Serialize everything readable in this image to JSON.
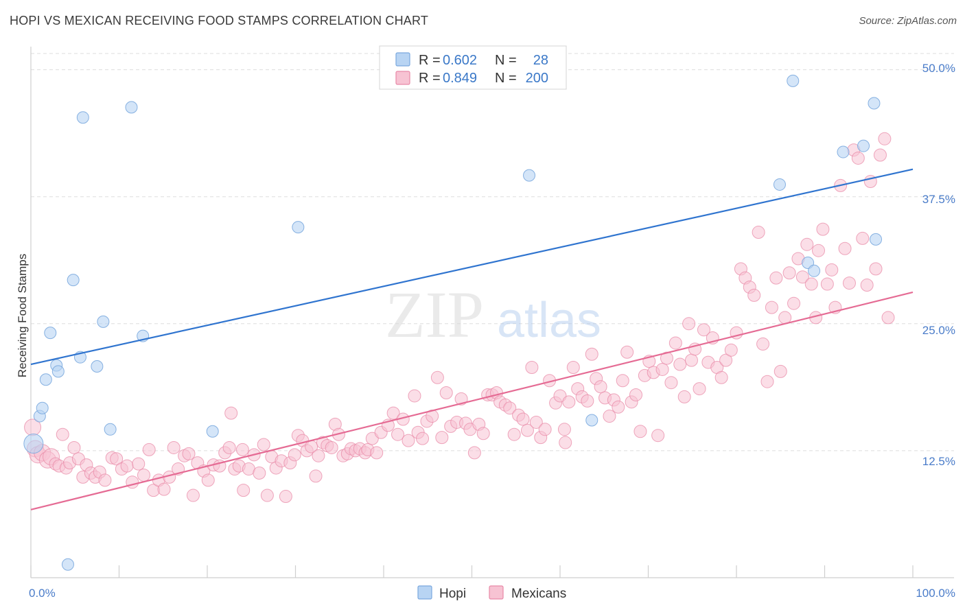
{
  "title": "HOPI VS MEXICAN RECEIVING FOOD STAMPS CORRELATION CHART",
  "source": "Source: ZipAtlas.com",
  "watermark": {
    "zip": "ZIP",
    "atlas": "atlas"
  },
  "legend": {
    "rows": [
      {
        "r_label": "R = ",
        "r_value": "0.602",
        "n_label": "N = ",
        "n_value": "28"
      },
      {
        "r_label": "R = ",
        "r_value": "0.849",
        "n_label": "N = ",
        "n_value": "200"
      }
    ]
  },
  "bottom_legend": [
    "Hopi",
    "Mexicans"
  ],
  "colors": {
    "hopi_fill": "#b8d4f3",
    "hopi_stroke": "#7aa8de",
    "hopi_line": "#2f74cf",
    "mex_fill": "#f7c3d3",
    "mex_stroke": "#e889a7",
    "mex_line": "#e56b94",
    "tick_text": "#4a7cc9",
    "grid": "#dddddd"
  },
  "chart_data": {
    "type": "scatter",
    "title": "HOPI VS MEXICAN RECEIVING FOOD STAMPS CORRELATION CHART",
    "xlabel": "",
    "ylabel": "Receiving Food Stamps",
    "xlim": [
      0,
      100
    ],
    "ylim": [
      0,
      52
    ],
    "x_tick_labels": [
      "0.0%",
      "100.0%"
    ],
    "y_ticks": [
      12.5,
      25.0,
      37.5,
      50.0
    ],
    "y_tick_labels": [
      "12.5%",
      "25.0%",
      "37.5%",
      "50.0%"
    ],
    "grid": true,
    "legend_position": "top-center",
    "series": [
      {
        "name": "Hopi",
        "r": 0.602,
        "n": 28,
        "trend": [
          [
            0,
            21.0
          ],
          [
            100,
            40.2
          ]
        ],
        "points": [
          [
            0.3,
            13.2
          ],
          [
            1.0,
            15.9
          ],
          [
            1.3,
            16.7
          ],
          [
            1.7,
            19.5
          ],
          [
            2.2,
            24.1
          ],
          [
            2.9,
            20.9
          ],
          [
            3.1,
            20.3
          ],
          [
            5.6,
            21.7
          ],
          [
            5.9,
            45.3
          ],
          [
            4.8,
            29.3
          ],
          [
            7.5,
            20.8
          ],
          [
            8.2,
            25.2
          ],
          [
            9.0,
            14.6
          ],
          [
            11.4,
            46.3
          ],
          [
            12.7,
            23.8
          ],
          [
            20.6,
            14.4
          ],
          [
            30.3,
            34.5
          ],
          [
            4.2,
            1.3
          ],
          [
            56.5,
            39.6
          ],
          [
            63.6,
            15.5
          ],
          [
            84.9,
            38.7
          ],
          [
            86.4,
            48.9
          ],
          [
            88.1,
            31.0
          ],
          [
            88.8,
            30.2
          ],
          [
            92.1,
            41.9
          ],
          [
            94.4,
            42.5
          ],
          [
            95.6,
            46.7
          ],
          [
            95.8,
            33.3
          ]
        ]
      },
      {
        "name": "Mexicans",
        "r": 0.849,
        "n": 200,
        "trend": [
          [
            0,
            6.7
          ],
          [
            100,
            28.1
          ]
        ],
        "points": [
          [
            0.2,
            14.8
          ],
          [
            0.5,
            12.7
          ],
          [
            0.8,
            12.1
          ],
          [
            1.3,
            12.3
          ],
          [
            1.9,
            11.6
          ],
          [
            2.3,
            11.9
          ],
          [
            2.8,
            11.2
          ],
          [
            3.2,
            11.0
          ],
          [
            3.6,
            14.1
          ],
          [
            4.0,
            10.8
          ],
          [
            4.4,
            11.3
          ],
          [
            4.9,
            12.8
          ],
          [
            5.4,
            11.7
          ],
          [
            5.9,
            9.9
          ],
          [
            6.3,
            11.1
          ],
          [
            6.8,
            10.3
          ],
          [
            7.3,
            9.9
          ],
          [
            7.8,
            10.4
          ],
          [
            8.4,
            9.6
          ],
          [
            9.2,
            11.8
          ],
          [
            9.7,
            11.7
          ],
          [
            10.3,
            10.7
          ],
          [
            10.9,
            11.0
          ],
          [
            11.5,
            9.4
          ],
          [
            12.2,
            11.2
          ],
          [
            12.8,
            10.1
          ],
          [
            13.4,
            12.6
          ],
          [
            13.9,
            8.6
          ],
          [
            14.5,
            9.6
          ],
          [
            15.1,
            8.7
          ],
          [
            15.7,
            9.9
          ],
          [
            16.2,
            12.8
          ],
          [
            16.7,
            10.7
          ],
          [
            17.4,
            12.0
          ],
          [
            17.9,
            12.2
          ],
          [
            18.4,
            8.1
          ],
          [
            18.9,
            11.3
          ],
          [
            19.6,
            10.5
          ],
          [
            20.1,
            9.6
          ],
          [
            20.7,
            11.1
          ],
          [
            21.4,
            11.0
          ],
          [
            22.0,
            12.3
          ],
          [
            22.5,
            12.8
          ],
          [
            22.7,
            16.2
          ],
          [
            23.1,
            10.7
          ],
          [
            23.6,
            11.0
          ],
          [
            24.1,
            8.6
          ],
          [
            24.7,
            10.7
          ],
          [
            25.3,
            12.1
          ],
          [
            25.9,
            10.3
          ],
          [
            26.4,
            13.1
          ],
          [
            26.8,
            8.1
          ],
          [
            27.3,
            11.9
          ],
          [
            27.8,
            10.8
          ],
          [
            28.4,
            11.5
          ],
          [
            28.9,
            8.0
          ],
          [
            29.4,
            11.3
          ],
          [
            29.9,
            12.1
          ],
          [
            30.3,
            14.0
          ],
          [
            30.8,
            13.5
          ],
          [
            31.3,
            12.5
          ],
          [
            31.8,
            12.9
          ],
          [
            32.3,
            10.0
          ],
          [
            32.6,
            12.0
          ],
          [
            33.1,
            13.3
          ],
          [
            33.6,
            13.0
          ],
          [
            34.1,
            12.8
          ],
          [
            34.5,
            15.1
          ],
          [
            34.9,
            14.1
          ],
          [
            35.4,
            12.0
          ],
          [
            35.9,
            12.2
          ],
          [
            36.3,
            12.7
          ],
          [
            36.8,
            12.5
          ],
          [
            37.3,
            12.7
          ],
          [
            37.9,
            12.3
          ],
          [
            38.2,
            12.6
          ],
          [
            38.7,
            13.7
          ],
          [
            39.2,
            12.3
          ],
          [
            39.7,
            14.3
          ],
          [
            40.5,
            15.0
          ],
          [
            41.1,
            16.2
          ],
          [
            41.6,
            14.1
          ],
          [
            42.2,
            15.6
          ],
          [
            42.8,
            13.5
          ],
          [
            43.5,
            17.9
          ],
          [
            43.9,
            14.3
          ],
          [
            44.4,
            13.7
          ],
          [
            44.9,
            15.4
          ],
          [
            45.5,
            15.9
          ],
          [
            46.1,
            19.7
          ],
          [
            46.6,
            13.8
          ],
          [
            47.1,
            18.2
          ],
          [
            47.6,
            14.9
          ],
          [
            48.3,
            15.3
          ],
          [
            48.8,
            17.6
          ],
          [
            49.3,
            15.2
          ],
          [
            50.3,
            12.3
          ],
          [
            49.8,
            14.6
          ],
          [
            50.8,
            15.1
          ],
          [
            51.3,
            14.2
          ],
          [
            51.8,
            18.0
          ],
          [
            52.3,
            18.0
          ],
          [
            52.8,
            18.2
          ],
          [
            53.2,
            17.3
          ],
          [
            53.8,
            17.0
          ],
          [
            54.3,
            16.7
          ],
          [
            54.8,
            14.1
          ],
          [
            55.3,
            16.0
          ],
          [
            55.8,
            15.6
          ],
          [
            56.3,
            14.5
          ],
          [
            56.8,
            20.7
          ],
          [
            57.3,
            15.3
          ],
          [
            57.8,
            13.8
          ],
          [
            58.3,
            14.6
          ],
          [
            58.8,
            19.4
          ],
          [
            59.5,
            17.2
          ],
          [
            60.0,
            17.9
          ],
          [
            60.5,
            14.6
          ],
          [
            61.0,
            17.3
          ],
          [
            61.5,
            20.7
          ],
          [
            62.0,
            18.6
          ],
          [
            62.5,
            17.8
          ],
          [
            63.1,
            17.4
          ],
          [
            63.6,
            22.0
          ],
          [
            64.1,
            19.6
          ],
          [
            64.6,
            18.8
          ],
          [
            65.1,
            17.7
          ],
          [
            65.6,
            15.9
          ],
          [
            66.1,
            17.5
          ],
          [
            66.6,
            16.8
          ],
          [
            67.1,
            19.4
          ],
          [
            67.6,
            22.2
          ],
          [
            68.1,
            17.3
          ],
          [
            68.6,
            18.0
          ],
          [
            69.1,
            14.4
          ],
          [
            69.6,
            19.9
          ],
          [
            70.1,
            21.3
          ],
          [
            70.6,
            20.2
          ],
          [
            71.1,
            14.0
          ],
          [
            71.6,
            20.5
          ],
          [
            72.1,
            21.6
          ],
          [
            72.6,
            19.2
          ],
          [
            73.1,
            23.1
          ],
          [
            73.6,
            21.0
          ],
          [
            74.1,
            17.8
          ],
          [
            74.6,
            25.0
          ],
          [
            74.9,
            21.4
          ],
          [
            75.3,
            22.5
          ],
          [
            75.8,
            18.6
          ],
          [
            76.3,
            24.4
          ],
          [
            76.8,
            21.2
          ],
          [
            77.3,
            23.6
          ],
          [
            77.8,
            20.7
          ],
          [
            78.3,
            19.7
          ],
          [
            78.8,
            21.4
          ],
          [
            79.4,
            22.4
          ],
          [
            80.0,
            24.1
          ],
          [
            80.5,
            30.4
          ],
          [
            81.0,
            29.5
          ],
          [
            81.5,
            28.6
          ],
          [
            82.0,
            27.8
          ],
          [
            82.5,
            34.0
          ],
          [
            83.0,
            23.0
          ],
          [
            83.5,
            19.3
          ],
          [
            84.0,
            26.6
          ],
          [
            84.5,
            29.5
          ],
          [
            85.0,
            20.3
          ],
          [
            85.5,
            25.6
          ],
          [
            86.0,
            30.0
          ],
          [
            86.5,
            27.0
          ],
          [
            87.0,
            31.4
          ],
          [
            87.5,
            29.6
          ],
          [
            88.0,
            32.8
          ],
          [
            88.5,
            28.9
          ],
          [
            89.0,
            25.6
          ],
          [
            89.3,
            32.2
          ],
          [
            89.8,
            34.3
          ],
          [
            90.3,
            28.9
          ],
          [
            90.8,
            30.3
          ],
          [
            91.2,
            26.6
          ],
          [
            91.8,
            38.6
          ],
          [
            92.3,
            32.4
          ],
          [
            92.8,
            29.0
          ],
          [
            93.3,
            42.1
          ],
          [
            93.8,
            41.3
          ],
          [
            94.3,
            33.4
          ],
          [
            94.8,
            28.8
          ],
          [
            95.2,
            39.0
          ],
          [
            95.8,
            30.4
          ],
          [
            96.3,
            41.6
          ],
          [
            96.8,
            43.2
          ],
          [
            97.2,
            25.6
          ],
          [
            60.6,
            13.3
          ],
          [
            24.0,
            12.6
          ]
        ]
      }
    ]
  }
}
